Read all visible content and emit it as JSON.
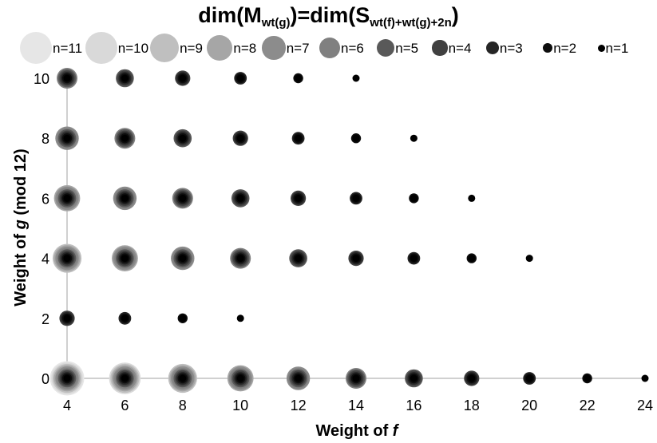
{
  "chart_data": {
    "type": "scatter",
    "title": {
      "main": "dim(M",
      "sub1": "wt(g)",
      "mid": ")=dim(S",
      "sub2": "wt(f)+wt(g)+2n",
      "end": ")"
    },
    "xlabel": "Weight of f",
    "ylabel": "Weight of g (mod 12)",
    "xlim": [
      4,
      24
    ],
    "ylim": [
      0,
      10
    ],
    "xticks": [
      4,
      6,
      8,
      10,
      12,
      14,
      16,
      18,
      20,
      22,
      24
    ],
    "yticks": [
      0,
      2,
      4,
      6,
      8,
      10
    ],
    "grid": false,
    "legend_position": "top",
    "legend": [
      "n=11",
      "n=10",
      "n=9",
      "n=8",
      "n=7",
      "n=6",
      "n=5",
      "n=4",
      "n=3",
      "n=2",
      "n=1"
    ],
    "series_colors": [
      "#e6e6e6",
      "#d9d9d9",
      "#bfbfbf",
      "#a6a6a6",
      "#8c8c8c",
      "#808080",
      "#595959",
      "#404040",
      "#262626",
      "#0d0d0d",
      "#000000"
    ],
    "points": [
      {
        "x": 4,
        "y": 0,
        "n": 11
      },
      {
        "x": 6,
        "y": 0,
        "n": 10
      },
      {
        "x": 8,
        "y": 0,
        "n": 9
      },
      {
        "x": 10,
        "y": 0,
        "n": 8
      },
      {
        "x": 12,
        "y": 0,
        "n": 7
      },
      {
        "x": 14,
        "y": 0,
        "n": 6
      },
      {
        "x": 16,
        "y": 0,
        "n": 5
      },
      {
        "x": 18,
        "y": 0,
        "n": 4
      },
      {
        "x": 20,
        "y": 0,
        "n": 3
      },
      {
        "x": 22,
        "y": 0,
        "n": 2
      },
      {
        "x": 24,
        "y": 0,
        "n": 1
      },
      {
        "x": 4,
        "y": 2,
        "n": 4
      },
      {
        "x": 6,
        "y": 2,
        "n": 3
      },
      {
        "x": 8,
        "y": 2,
        "n": 2
      },
      {
        "x": 10,
        "y": 2,
        "n": 1
      },
      {
        "x": 4,
        "y": 4,
        "n": 9
      },
      {
        "x": 6,
        "y": 4,
        "n": 8
      },
      {
        "x": 8,
        "y": 4,
        "n": 7
      },
      {
        "x": 10,
        "y": 4,
        "n": 6
      },
      {
        "x": 12,
        "y": 4,
        "n": 5
      },
      {
        "x": 14,
        "y": 4,
        "n": 4
      },
      {
        "x": 16,
        "y": 4,
        "n": 3
      },
      {
        "x": 18,
        "y": 4,
        "n": 2
      },
      {
        "x": 20,
        "y": 4,
        "n": 1
      },
      {
        "x": 4,
        "y": 6,
        "n": 8
      },
      {
        "x": 6,
        "y": 6,
        "n": 7
      },
      {
        "x": 8,
        "y": 6,
        "n": 6
      },
      {
        "x": 10,
        "y": 6,
        "n": 5
      },
      {
        "x": 12,
        "y": 6,
        "n": 4
      },
      {
        "x": 14,
        "y": 6,
        "n": 3
      },
      {
        "x": 16,
        "y": 6,
        "n": 2
      },
      {
        "x": 18,
        "y": 6,
        "n": 1
      },
      {
        "x": 4,
        "y": 8,
        "n": 7
      },
      {
        "x": 6,
        "y": 8,
        "n": 6
      },
      {
        "x": 8,
        "y": 8,
        "n": 5
      },
      {
        "x": 10,
        "y": 8,
        "n": 4
      },
      {
        "x": 12,
        "y": 8,
        "n": 3
      },
      {
        "x": 14,
        "y": 8,
        "n": 2
      },
      {
        "x": 16,
        "y": 8,
        "n": 1
      },
      {
        "x": 4,
        "y": 10,
        "n": 6
      },
      {
        "x": 6,
        "y": 10,
        "n": 5
      },
      {
        "x": 8,
        "y": 10,
        "n": 4
      },
      {
        "x": 10,
        "y": 10,
        "n": 3
      },
      {
        "x": 12,
        "y": 10,
        "n": 2
      },
      {
        "x": 14,
        "y": 10,
        "n": 1
      }
    ]
  }
}
